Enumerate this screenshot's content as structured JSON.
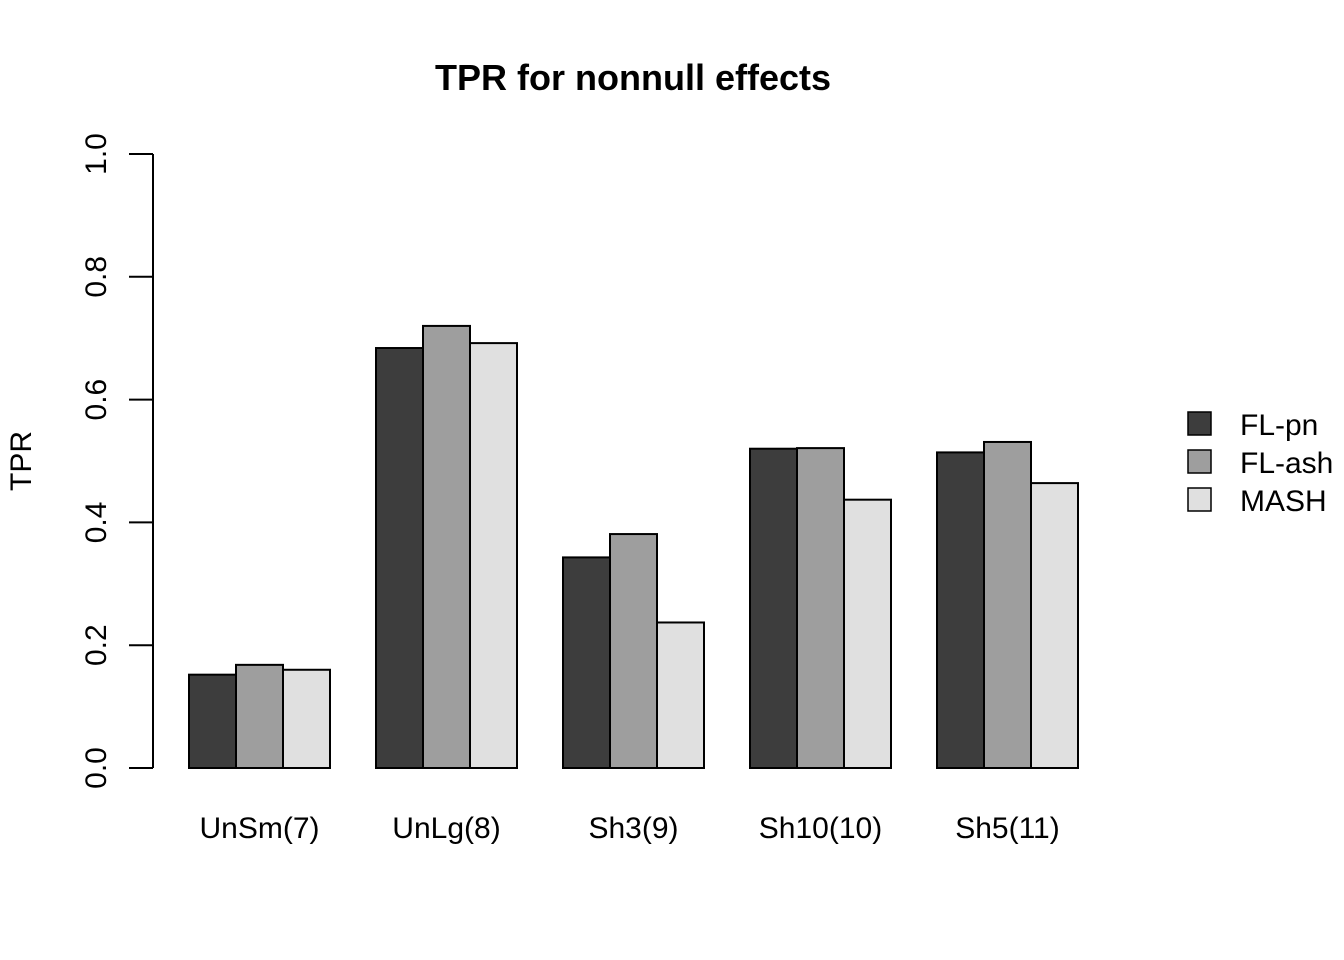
{
  "chart_data": {
    "type": "bar",
    "title": "TPR for nonnull effects",
    "xlabel": "",
    "ylabel": "TPR",
    "ylim": [
      0,
      1
    ],
    "yticks": [
      "0.0",
      "0.2",
      "0.4",
      "0.6",
      "0.8",
      "1.0"
    ],
    "categories": [
      "UnSm(7)",
      "UnLg(8)",
      "Sh3(9)",
      "Sh10(10)",
      "Sh5(11)"
    ],
    "series": [
      {
        "name": "FL-pn",
        "color": "#3d3d3d",
        "values": [
          0.152,
          0.684,
          0.343,
          0.52,
          0.514
        ]
      },
      {
        "name": "FL-ash",
        "color": "#9e9e9e",
        "values": [
          0.168,
          0.72,
          0.381,
          0.521,
          0.531
        ]
      },
      {
        "name": "MASH",
        "color": "#e0e0e0",
        "values": [
          0.16,
          0.692,
          0.237,
          0.437,
          0.464
        ]
      }
    ],
    "grid": false,
    "legend_position": "right"
  }
}
